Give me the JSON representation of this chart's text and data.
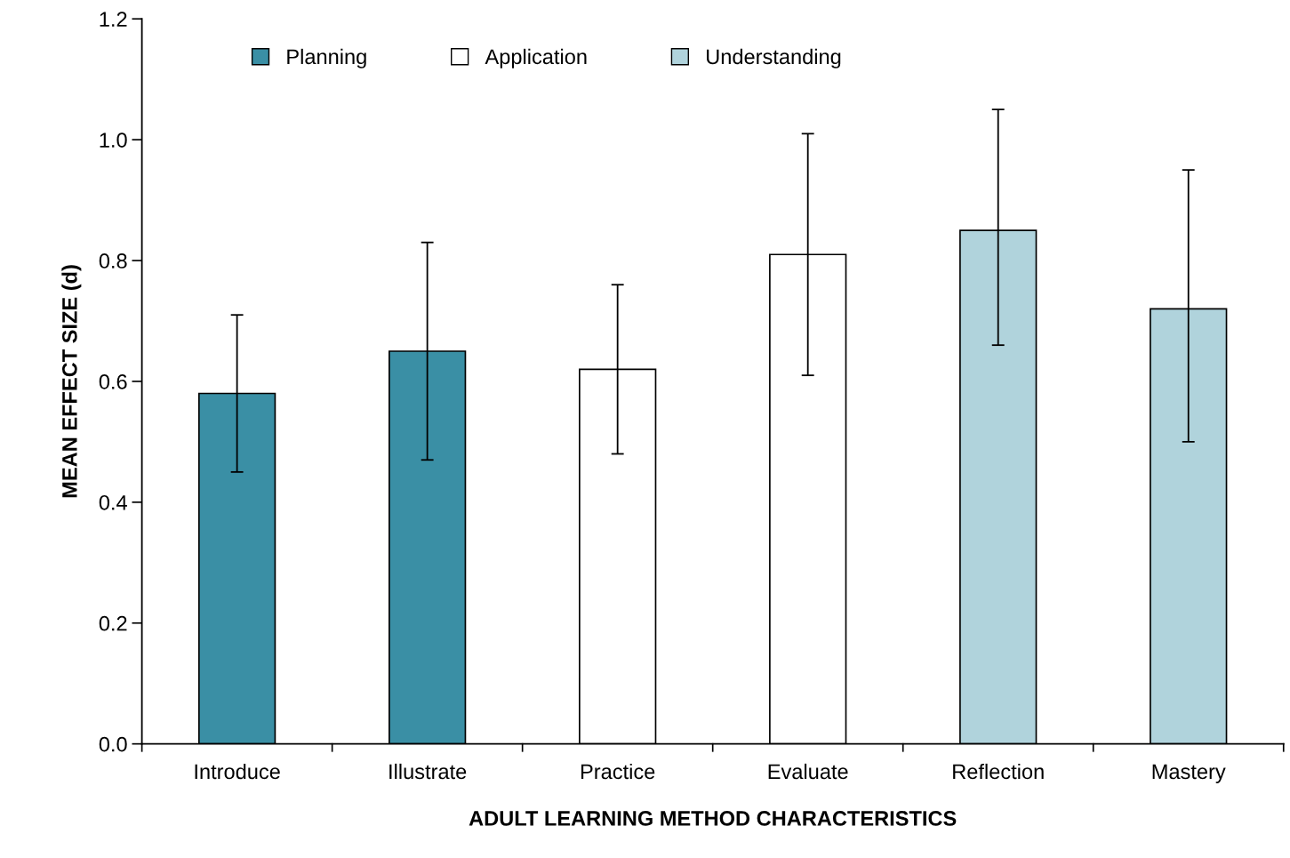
{
  "chart_data": {
    "type": "bar",
    "xlabel": "ADULT LEARNING METHOD CHARACTERISTICS",
    "ylabel": "MEAN EFFECT SIZE (d)",
    "categories": [
      "Introduce",
      "Illustrate",
      "Practice",
      "Evaluate",
      "Reflection",
      "Mastery"
    ],
    "series": [
      {
        "name": "Planning",
        "color": "#3a8fa5",
        "values": [
          0.58,
          0.65,
          null,
          null,
          null,
          null
        ],
        "errors": [
          [
            0.45,
            0.71
          ],
          [
            0.47,
            0.83
          ],
          null,
          null,
          null,
          null
        ]
      },
      {
        "name": "Application",
        "color": "#ffffff",
        "values": [
          null,
          null,
          0.62,
          0.81,
          null,
          null
        ],
        "errors": [
          null,
          null,
          [
            0.48,
            0.76
          ],
          [
            0.61,
            1.01
          ],
          null,
          null
        ]
      },
      {
        "name": "Understanding",
        "color": "#b0d3dc",
        "values": [
          null,
          null,
          null,
          null,
          0.85,
          0.72
        ],
        "errors": [
          null,
          null,
          null,
          null,
          [
            0.66,
            1.05
          ],
          [
            0.5,
            0.95
          ]
        ]
      }
    ],
    "ylim": [
      0,
      1.2
    ],
    "yticks": [
      {
        "value": 0,
        "label": "0.0"
      },
      {
        "value": 0.2,
        "label": "0.2"
      },
      {
        "value": 0.4,
        "label": "0.4"
      },
      {
        "value": 0.6,
        "label": "0.6"
      },
      {
        "value": 0.8,
        "label": "0.8"
      },
      {
        "value": 1.0,
        "label": "1.0"
      },
      {
        "value": 1.2,
        "label": "1.2"
      }
    ],
    "grid": false,
    "legend": "top left"
  }
}
